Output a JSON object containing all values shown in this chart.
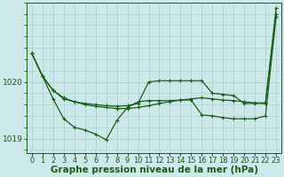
{
  "xlabel": "Graphe pression niveau de la mer (hPa)",
  "background_color": "#cce8e8",
  "line_color": "#1a5c1a",
  "grid_color": "#a8cccc",
  "hours": [
    0,
    1,
    2,
    3,
    4,
    5,
    6,
    7,
    8,
    9,
    10,
    11,
    12,
    13,
    14,
    15,
    16,
    17,
    18,
    19,
    20,
    21,
    22,
    23
  ],
  "series": [
    [
      1020.5,
      1020.1,
      1019.85,
      1019.72,
      1019.65,
      1019.6,
      1019.57,
      1019.55,
      1019.53,
      1019.53,
      1019.55,
      1019.58,
      1019.62,
      1019.65,
      1019.68,
      1019.7,
      1019.72,
      1019.7,
      1019.68,
      1019.67,
      1019.65,
      1019.63,
      1019.63,
      1021.2
    ],
    [
      1020.5,
      1020.1,
      1019.85,
      1019.7,
      1019.65,
      1019.62,
      1019.6,
      1019.58,
      1019.57,
      1019.58,
      1019.62,
      1020.0,
      1020.02,
      1020.02,
      1020.02,
      1020.02,
      1020.02,
      1019.8,
      1019.78,
      1019.76,
      1019.62,
      1019.62,
      1019.62,
      1021.3
    ],
    [
      1020.5,
      1020.1,
      1019.7,
      1019.35,
      1019.2,
      1019.15,
      1019.08,
      1018.98,
      1019.32,
      1019.55,
      1019.65,
      1019.67,
      1019.67,
      1019.67,
      1019.68,
      1019.68,
      1019.42,
      1019.4,
      1019.37,
      1019.35,
      1019.35,
      1019.35,
      1019.4,
      1021.15
    ]
  ],
  "ylim": [
    1018.75,
    1021.4
  ],
  "yticks": [
    1019,
    1020
  ],
  "tick_fontsize": 6,
  "xlabel_fontsize": 7.5,
  "marker_size": 3,
  "linewidth": 0.9
}
